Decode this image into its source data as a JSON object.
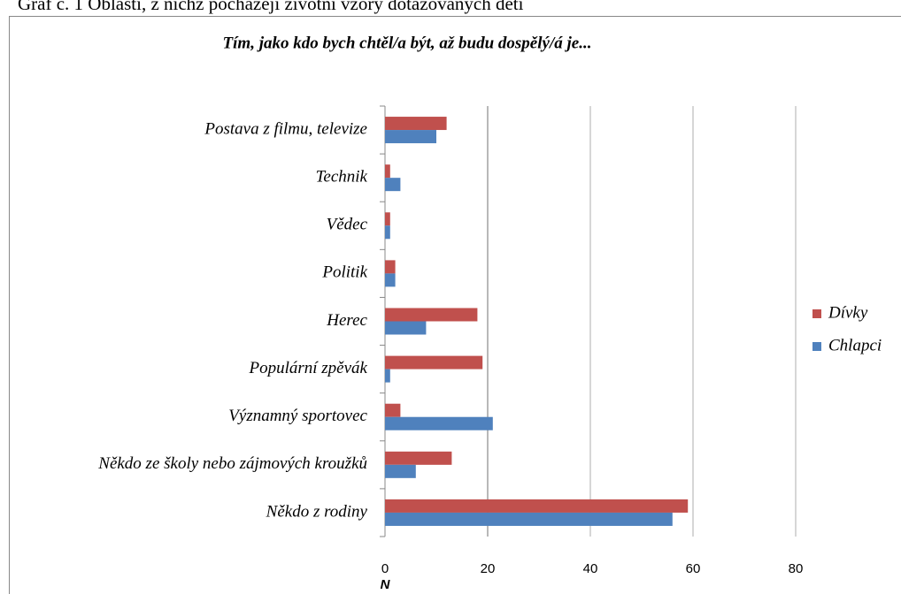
{
  "caption": "Graf č. 1 Oblasti, z nichž pocházejí životní vzory dotazovaných dětí",
  "chart_data": {
    "type": "barh",
    "title": "Tím, jako kdo bych chtěl/a být, až budu dospělý/á je...",
    "xlabel": "N",
    "categories": [
      "Postava z filmu, televize",
      "Technik",
      "Vědec",
      "Politik",
      "Herec",
      "Populární zpěvák",
      "Významný sportovec",
      "Někdo ze školy nebo zájmových kroužků",
      "Někdo z rodiny"
    ],
    "series": [
      {
        "name": "Dívky",
        "color": "#c0504d",
        "values": [
          12,
          1,
          1,
          2,
          18,
          19,
          3,
          13,
          59
        ]
      },
      {
        "name": "Chlapci",
        "color": "#4f81bd",
        "values": [
          10,
          3,
          1,
          2,
          8,
          1,
          21,
          6,
          56
        ]
      }
    ],
    "xlim": [
      0,
      80
    ],
    "xticks": [
      0,
      20,
      40,
      60,
      80
    ],
    "grid": true,
    "legend": "right"
  }
}
